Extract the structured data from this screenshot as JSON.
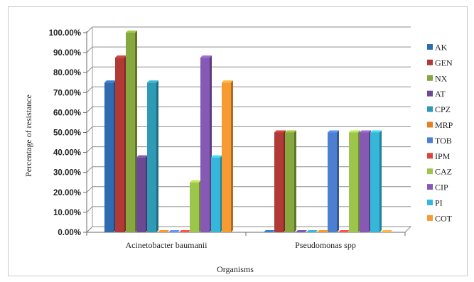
{
  "chart_data": {
    "type": "bar",
    "title": "",
    "xlabel": "Organisms",
    "ylabel": "Percentage of resistance",
    "ylim": [
      0,
      100
    ],
    "yticks": [
      "0.00%",
      "10.00%",
      "20.00%",
      "30.00%",
      "40.00%",
      "50.00%",
      "60.00%",
      "70.00%",
      "80.00%",
      "90.00%",
      "100.00%"
    ],
    "grid": true,
    "legend_position": "right",
    "categories": [
      "Acinetobacter baumanii",
      "Pseudomonas spp"
    ],
    "series": [
      {
        "name": "AK",
        "color": "#2e6bb0",
        "values": [
          75,
          0
        ]
      },
      {
        "name": "GEN",
        "color": "#b13a36",
        "values": [
          87.5,
          50
        ]
      },
      {
        "name": "NX",
        "color": "#86a83e",
        "values": [
          100,
          50
        ]
      },
      {
        "name": "AT",
        "color": "#6b4a93",
        "values": [
          37.5,
          0
        ]
      },
      {
        "name": "CPZ",
        "color": "#2f9ab5",
        "values": [
          75,
          0
        ]
      },
      {
        "name": "MRP",
        "color": "#e57f22",
        "values": [
          0,
          0
        ]
      },
      {
        "name": "TOB",
        "color": "#4c7fd0",
        "values": [
          0,
          50
        ]
      },
      {
        "name": "IPM",
        "color": "#d9443f",
        "values": [
          0,
          0
        ]
      },
      {
        "name": "CAZ",
        "color": "#9dc54b",
        "values": [
          25,
          50
        ]
      },
      {
        "name": "CIP",
        "color": "#8659b5",
        "values": [
          87.5,
          50
        ]
      },
      {
        "name": "PI",
        "color": "#35b7d9",
        "values": [
          37.5,
          50
        ]
      },
      {
        "name": "COT",
        "color": "#f79a32",
        "values": [
          75,
          0
        ]
      }
    ]
  }
}
